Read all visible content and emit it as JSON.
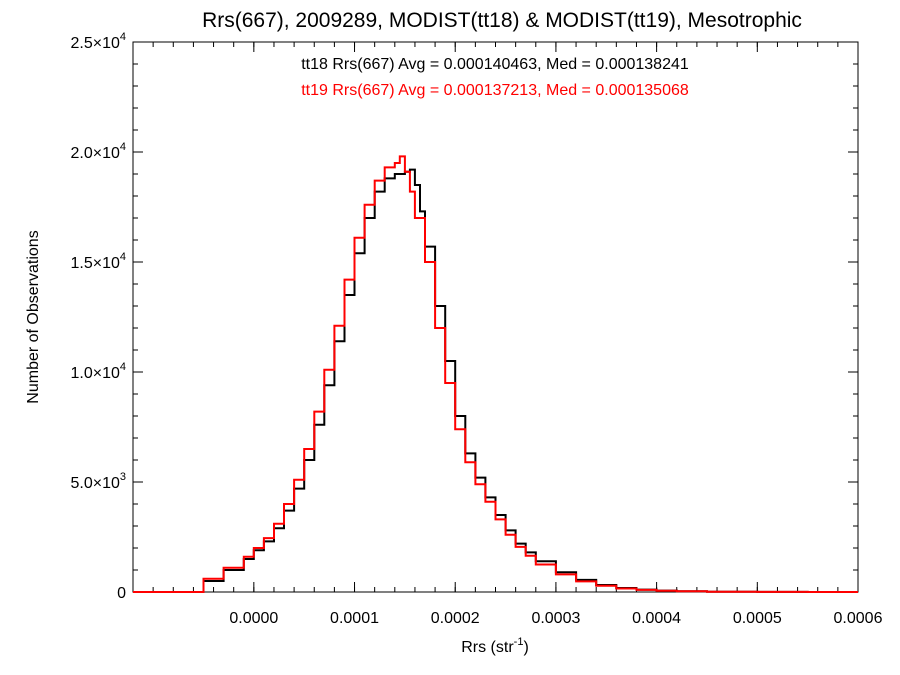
{
  "chart_data": {
    "type": "line",
    "step": true,
    "title": "Rrs(667), 2009289, MODIST(tt18) & MODIST(tt19), Mesotrophic",
    "xlabel": "Rrs (str",
    "xlabel_sup": "-1",
    "xlabel_close": ")",
    "ylabel": "Number of Observations",
    "xlim": [
      -0.00012,
      0.0006
    ],
    "ylim": [
      0,
      25000
    ],
    "grid": false,
    "x_ticks": [
      0.0,
      0.0001,
      0.0002,
      0.0003,
      0.0004,
      0.0005,
      0.0006
    ],
    "x_tick_labels": [
      "0.0000",
      "0.0001",
      "0.0002",
      "0.0003",
      "0.0004",
      "0.0005",
      "0.0006"
    ],
    "y_ticks": [
      0,
      5000,
      10000,
      15000,
      20000,
      25000
    ],
    "y_tick_labels": [
      {
        "mant": "0",
        "exp": ""
      },
      {
        "mant": "5.0×10",
        "exp": "3"
      },
      {
        "mant": "1.0×10",
        "exp": "4"
      },
      {
        "mant": "1.5×10",
        "exp": "4"
      },
      {
        "mant": "2.0×10",
        "exp": "4"
      },
      {
        "mant": "2.5×10",
        "exp": "4"
      }
    ],
    "annotations": [
      {
        "text": "tt18 Rrs(667) Avg = 0.000140463, Med = 0.000138241",
        "color": "#000000"
      },
      {
        "text": "tt19 Rrs(667) Avg = 0.000137213, Med = 0.000135068",
        "color": "#ff0000"
      }
    ],
    "series": [
      {
        "color": "#000000",
        "x": [
          -0.00012,
          -0.0001,
          -7e-05,
          -5e-05,
          -3e-05,
          -1e-05,
          0.0,
          1e-05,
          2e-05,
          3e-05,
          4e-05,
          5e-05,
          6e-05,
          7e-05,
          8e-05,
          9e-05,
          0.0001,
          0.00011,
          0.00012,
          0.00013,
          0.00014,
          0.00015,
          0.000155,
          0.00016,
          0.000165,
          0.00017,
          0.00018,
          0.00019,
          0.0002,
          0.00021,
          0.00022,
          0.00023,
          0.00024,
          0.00025,
          0.00026,
          0.00027,
          0.00028,
          0.0003,
          0.00032,
          0.00034,
          0.00036,
          0.00038,
          0.0004,
          0.00042,
          0.00045,
          0.0005,
          0.00055,
          0.0006
        ],
        "y": [
          0,
          0,
          0,
          500,
          1000,
          1500,
          1900,
          2300,
          2900,
          3700,
          4700,
          6000,
          7600,
          9400,
          11400,
          13500,
          15400,
          17000,
          18200,
          18800,
          19000,
          19100,
          19200,
          18500,
          17300,
          15700,
          13000,
          10500,
          8000,
          6300,
          5200,
          4300,
          3500,
          2800,
          2200,
          1800,
          1400,
          900,
          550,
          320,
          180,
          110,
          65,
          35,
          15,
          5,
          2,
          0
        ]
      },
      {
        "color": "#ff0000",
        "x": [
          -0.00012,
          -0.0001,
          -7e-05,
          -5e-05,
          -3e-05,
          -1e-05,
          0.0,
          1e-05,
          2e-05,
          3e-05,
          4e-05,
          5e-05,
          6e-05,
          7e-05,
          8e-05,
          9e-05,
          0.0001,
          0.00011,
          0.00012,
          0.00013,
          0.00014,
          0.000145,
          0.00015,
          0.000155,
          0.00016,
          0.00017,
          0.00018,
          0.00019,
          0.0002,
          0.00021,
          0.00022,
          0.00023,
          0.00024,
          0.00025,
          0.00026,
          0.00027,
          0.00028,
          0.0003,
          0.00032,
          0.00034,
          0.00036,
          0.00038,
          0.0004,
          0.00042,
          0.00045,
          0.0005,
          0.00055,
          0.0006
        ],
        "y": [
          0,
          0,
          0,
          600,
          1100,
          1600,
          2000,
          2450,
          3100,
          4000,
          5100,
          6500,
          8200,
          10100,
          12100,
          14200,
          16100,
          17600,
          18700,
          19300,
          19500,
          19800,
          19100,
          18200,
          17000,
          15000,
          12000,
          9500,
          7400,
          5900,
          4900,
          4100,
          3300,
          2600,
          2050,
          1650,
          1250,
          800,
          480,
          280,
          160,
          95,
          55,
          30,
          12,
          4,
          1,
          0
        ]
      }
    ]
  }
}
